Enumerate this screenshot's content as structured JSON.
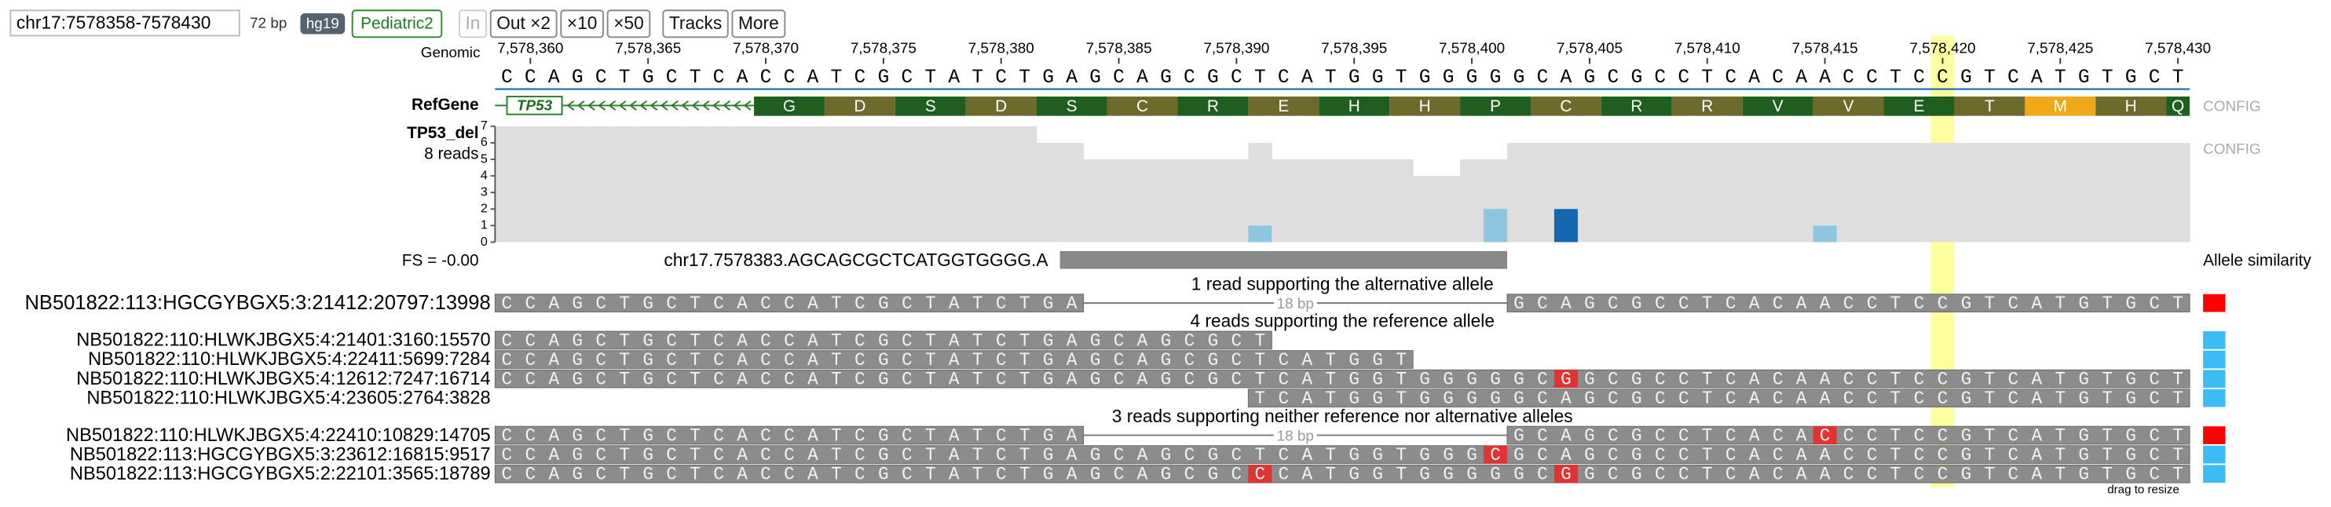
{
  "toolbar": {
    "locus": "chr17:7578358-7578430",
    "span": "72 bp",
    "genome": "hg19",
    "dataset": "Pediatric2",
    "buttons": [
      "In",
      "Out ×2",
      "×10",
      "×50",
      "Tracks",
      "More"
    ]
  },
  "chart_data": {
    "type": "alignment",
    "xlim": [
      7578359,
      7578431
    ],
    "xticks": [
      {
        "value": 7578360,
        "label": "7,578,360"
      },
      {
        "value": 7578365,
        "label": "7,578,365"
      },
      {
        "value": 7578370,
        "label": "7,578,370"
      },
      {
        "value": 7578375,
        "label": "7,578,375"
      },
      {
        "value": 7578380,
        "label": "7,578,380"
      },
      {
        "value": 7578385,
        "label": "7,578,385"
      },
      {
        "value": 7578390,
        "label": "7,578,390"
      },
      {
        "value": 7578395,
        "label": "7,578,395"
      },
      {
        "value": 7578400,
        "label": "7,578,400"
      },
      {
        "value": 7578405,
        "label": "7,578,405"
      },
      {
        "value": 7578410,
        "label": "7,578,410"
      },
      {
        "value": 7578415,
        "label": "7,578,415"
      },
      {
        "value": 7578420,
        "label": "7,578,420"
      },
      {
        "value": 7578425,
        "label": "7,578,425"
      },
      {
        "value": 7578430,
        "label": "7,578,430"
      }
    ],
    "reference_label": "Genomic",
    "reference": {
      "start": 7578359,
      "sequence": "CCAGCTGCTCACCATCGCTATCTGAGCAGCGCTCATGGTGGGGGCAGCGCCTCACAACCTCCGTCATGTGCT"
    },
    "highlight_position": 7578420,
    "gene_track": {
      "label": "RefGene",
      "gene": "TP53",
      "start": 7578370,
      "config": "CONFIG",
      "amino_acids": [
        "G",
        "D",
        "S",
        "D",
        "S",
        "C",
        "R",
        "E",
        "H",
        "H",
        "P",
        "C",
        "R",
        "R",
        "V",
        "V",
        "E",
        "T",
        "M",
        "H",
        "Q"
      ],
      "colors": [
        "#1e5e1e",
        "#6e6a2c",
        "#1e5e1e",
        "#6e6a2c",
        "#1e5e1e",
        "#6e6a2c",
        "#1e5e1e",
        "#6e6a2c",
        "#1e5e1e",
        "#6e6a2c",
        "#1e5e1e",
        "#6e6a2c",
        "#1e5e1e",
        "#6e6a2c",
        "#1e5e1e",
        "#6e6a2c",
        "#1e5e1e",
        "#6e6a2c",
        "#f0a818",
        "#6e6a2c",
        "#1e5e1e"
      ]
    },
    "coverage": {
      "label": "TP53_del",
      "sublabel": "8 reads",
      "config": "CONFIG",
      "color": "#dedede",
      "ylim": [
        0,
        7
      ],
      "yticks": [
        0,
        1,
        2,
        3,
        4,
        5,
        6,
        7
      ],
      "values": [
        7,
        7,
        7,
        7,
        7,
        7,
        7,
        7,
        7,
        7,
        7,
        7,
        7,
        7,
        7,
        7,
        7,
        7,
        7,
        7,
        7,
        7,
        7,
        6,
        6,
        5,
        5,
        5,
        5,
        5,
        5,
        5,
        6,
        5,
        5,
        5,
        5,
        5,
        5,
        4,
        4,
        5,
        5,
        6,
        6,
        6,
        6,
        6,
        6,
        6,
        6,
        6,
        6,
        6,
        6,
        6,
        6,
        6,
        6,
        6,
        6,
        6,
        6,
        6,
        6,
        6,
        6,
        6,
        6,
        6,
        6,
        6
      ],
      "mismatches": [
        {
          "position": 7578391,
          "count": 1,
          "color": "#8ec6e2"
        },
        {
          "position": 7578401,
          "count": 2,
          "color": "#8ec6e2"
        },
        {
          "position": 7578404,
          "count": 2,
          "color": "#1466b0"
        },
        {
          "position": 7578415,
          "count": 1,
          "color": "#8ec6e2"
        }
      ]
    },
    "variant": {
      "score": "FS = -0.00",
      "label": "chr17.7578383.AGCAGCGCTCATGGTGGGG.A",
      "start": 7578383,
      "end": 7578402
    },
    "similarity_label": "Allele similarity",
    "resize_label": "drag to resize",
    "groups": [
      {
        "label": "1 read supporting the alternative allele",
        "reads": [
          {
            "name": "NB501822:113:HGCGYBGX5:3:21412:20797:13998",
            "similarity_color": "#ff0000",
            "deletion_label": "18 bp",
            "blocks": [
              {
                "start": 7578359,
                "sequence": "CCAGCTGCTCACCATCGCTATCTGA"
              },
              {
                "start": 7578402,
                "sequence": "GCAGCGCCTCACAACCTCCGTCATGTGCT"
              }
            ]
          }
        ]
      },
      {
        "label": "4 reads supporting the reference allele",
        "reads": [
          {
            "name": "NB501822:110:HLWKJBGX5:4:21401:3160:15570",
            "similarity_color": "#3cbcf4",
            "blocks": [
              {
                "start": 7578359,
                "sequence": "CCAGCTGCTCACCATCGCTATCTGAGCAGCGCT"
              }
            ]
          },
          {
            "name": "NB501822:110:HLWKJBGX5:4:22411:5699:7284",
            "similarity_color": "#3cbcf4",
            "blocks": [
              {
                "start": 7578359,
                "sequence": "CCAGCTGCTCACCATCGCTATCTGAGCAGCGCTCATGGT"
              }
            ]
          },
          {
            "name": "NB501822:110:HLWKJBGX5:4:12612:7247:16714",
            "similarity_color": "#3cbcf4",
            "blocks": [
              {
                "start": 7578359,
                "sequence": "CCAGCTGCTCACCATCGCTATCTGAGCAGCGCTCATGGTGGGGGCGGCGCCTCACAACCTCCGTCATGTGCT"
              }
            ]
          },
          {
            "name": "NB501822:110:HLWKJBGX5:4:23605:2764:3828",
            "similarity_color": "#3cbcf4",
            "blocks": [
              {
                "start": 7578391,
                "sequence": "TCATGGTGGGGGCAGCGCCTCACAACCTCCGTCATGTGCT"
              }
            ]
          }
        ]
      },
      {
        "label": "3 reads supporting neither reference nor alternative alleles",
        "reads": [
          {
            "name": "NB501822:110:HLWKJBGX5:4:22410:10829:14705",
            "similarity_color": "#ff0000",
            "deletion_label": "18 bp",
            "blocks": [
              {
                "start": 7578359,
                "sequence": "CCAGCTGCTCACCATCGCTATCTGA"
              },
              {
                "start": 7578402,
                "sequence": "GCAGCGCCTCACACCCTCCGTCATGTGCT"
              }
            ]
          },
          {
            "name": "NB501822:113:HGCGYBGX5:3:23612:16815:9517",
            "similarity_color": "#3cbcf4",
            "blocks": [
              {
                "start": 7578359,
                "sequence": "CCAGCTGCTCACCATCGCTATCTGAGCAGCGCTCATGGTGGGCGCAGCGCCTCACAACCTCCGTCATGTGCT"
              }
            ]
          },
          {
            "name": "NB501822:113:HGCGYBGX5:2:22101:3565:18789",
            "similarity_color": "#3cbcf4",
            "blocks": [
              {
                "start": 7578359,
                "sequence": "CCAGCTGCTCACCATCGCTATCTGAGCAGCGCCCATGGTGGGGGCGGCGCCTCACAACCTCCGTCATGTGCT"
              }
            ]
          }
        ]
      }
    ]
  }
}
